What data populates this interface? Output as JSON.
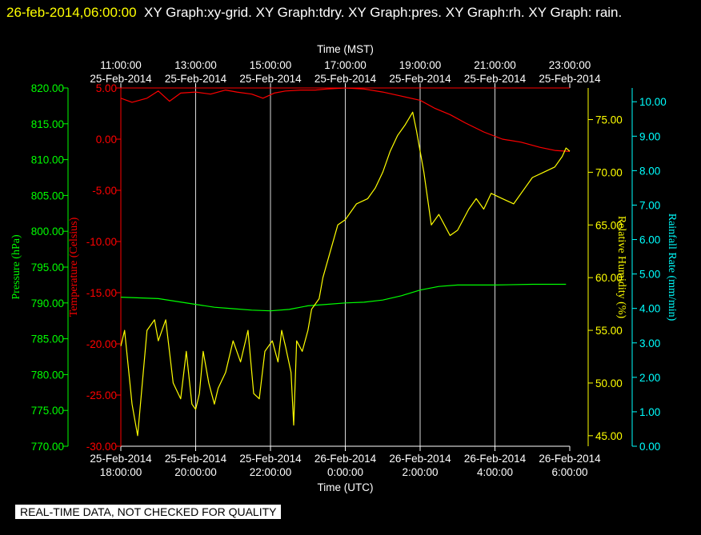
{
  "header": {
    "timestamp": "26-feb-2014,06:00:00",
    "graphs": "XY Graph:xy-grid.  XY Graph:tdry.  XY Graph:pres.  XY Graph:rh.  XY Graph: rain."
  },
  "footer": {
    "notice": "REAL-TIME DATA, NOT CHECKED FOR QUALITY"
  },
  "colors": {
    "background": "#000000",
    "grid": "#ffffff",
    "temperature": "#ff0000",
    "pressure": "#00ff00",
    "humidity": "#ffff00",
    "rainfall": "#00ffff"
  },
  "chart_data": {
    "type": "line",
    "top_axis": {
      "label": "Time (MST)",
      "ticks": [
        {
          "time": "11:00:00",
          "date": "25-Feb-2014"
        },
        {
          "time": "13:00:00",
          "date": "25-Feb-2014"
        },
        {
          "time": "15:00:00",
          "date": "25-Feb-2014"
        },
        {
          "time": "17:00:00",
          "date": "25-Feb-2014"
        },
        {
          "time": "19:00:00",
          "date": "25-Feb-2014"
        },
        {
          "time": "21:00:00",
          "date": "25-Feb-2014"
        },
        {
          "time": "23:00:00",
          "date": "25-Feb-2014"
        }
      ]
    },
    "bottom_axis": {
      "label": "Time (UTC)",
      "range_hours": [
        0,
        12
      ],
      "ticks": [
        {
          "date": "25-Feb-2014",
          "time": "18:00:00"
        },
        {
          "date": "25-Feb-2014",
          "time": "20:00:00"
        },
        {
          "date": "25-Feb-2014",
          "time": "22:00:00"
        },
        {
          "date": "26-Feb-2014",
          "time": "0:00:00"
        },
        {
          "date": "26-Feb-2014",
          "time": "2:00:00"
        },
        {
          "date": "26-Feb-2014",
          "time": "4:00:00"
        },
        {
          "date": "26-Feb-2014",
          "time": "6:00:00"
        }
      ]
    },
    "y_axes": {
      "pressure": {
        "label": "Pressure (hPa)",
        "range": [
          770,
          820
        ],
        "ticks": [
          "770.00",
          "775.00",
          "780.00",
          "785.00",
          "790.00",
          "795.00",
          "800.00",
          "805.00",
          "810.00",
          "815.00",
          "820.00"
        ]
      },
      "temperature": {
        "label": "Temperature (Celsius)",
        "range": [
          -30,
          5
        ],
        "ticks": [
          "-30.00",
          "-25.00",
          "-20.00",
          "-15.00",
          "-10.00",
          "-5.00",
          "0.00",
          "5.00"
        ]
      },
      "humidity": {
        "label": "Relative Humidity (%)",
        "range": [
          44,
          78
        ],
        "ticks": [
          "45.00",
          "50.00",
          "55.00",
          "60.00",
          "65.00",
          "70.00",
          "75.00"
        ]
      },
      "rainfall": {
        "label": "Rainfall Rate (mm/min)",
        "range": [
          0,
          10.4
        ],
        "ticks": [
          "0.00",
          "1.00",
          "2.00",
          "3.00",
          "4.00",
          "5.00",
          "6.00",
          "7.00",
          "8.00",
          "9.00",
          "10.00"
        ]
      }
    },
    "series": [
      {
        "name": "tdry",
        "axis": "temperature",
        "points": [
          [
            0,
            4.0
          ],
          [
            0.3,
            3.6
          ],
          [
            0.7,
            4.0
          ],
          [
            1.0,
            4.7
          ],
          [
            1.3,
            3.7
          ],
          [
            1.6,
            4.5
          ],
          [
            2.0,
            4.6
          ],
          [
            2.4,
            4.4
          ],
          [
            2.8,
            4.8
          ],
          [
            3.1,
            4.6
          ],
          [
            3.5,
            4.4
          ],
          [
            3.8,
            4.0
          ],
          [
            4.1,
            4.5
          ],
          [
            4.4,
            4.7
          ],
          [
            4.8,
            4.8
          ],
          [
            5.2,
            4.8
          ],
          [
            5.5,
            4.9
          ],
          [
            6.0,
            5.0
          ],
          [
            6.5,
            4.9
          ],
          [
            7.0,
            4.6
          ],
          [
            7.5,
            4.2
          ],
          [
            8.0,
            3.8
          ],
          [
            8.4,
            3.0
          ],
          [
            8.8,
            2.4
          ],
          [
            9.2,
            1.6
          ],
          [
            9.7,
            0.7
          ],
          [
            10.2,
            0.0
          ],
          [
            10.7,
            -0.3
          ],
          [
            11.2,
            -0.8
          ],
          [
            11.6,
            -1.1
          ],
          [
            12.0,
            -1.2
          ]
        ]
      },
      {
        "name": "pres",
        "axis": "pressure",
        "points": [
          [
            0,
            790.8
          ],
          [
            1.0,
            790.6
          ],
          [
            2.0,
            789.8
          ],
          [
            2.5,
            789.4
          ],
          [
            3.0,
            789.2
          ],
          [
            3.5,
            789.0
          ],
          [
            4.0,
            788.9
          ],
          [
            4.5,
            789.1
          ],
          [
            5.0,
            789.6
          ],
          [
            5.5,
            789.8
          ],
          [
            6.0,
            790.0
          ],
          [
            6.5,
            790.1
          ],
          [
            7.0,
            790.4
          ],
          [
            7.5,
            791.0
          ],
          [
            8.0,
            791.8
          ],
          [
            8.5,
            792.3
          ],
          [
            9.0,
            792.5
          ],
          [
            10.0,
            792.5
          ],
          [
            11.0,
            792.6
          ],
          [
            11.9,
            792.6
          ]
        ]
      },
      {
        "name": "rh",
        "axis": "humidity",
        "points": [
          [
            0,
            53.5
          ],
          [
            0.1,
            55.0
          ],
          [
            0.3,
            48.0
          ],
          [
            0.45,
            45.0
          ],
          [
            0.55,
            49.0
          ],
          [
            0.7,
            55.0
          ],
          [
            0.9,
            56.0
          ],
          [
            1.0,
            54.0
          ],
          [
            1.2,
            56.0
          ],
          [
            1.4,
            50.0
          ],
          [
            1.6,
            48.5
          ],
          [
            1.75,
            53.0
          ],
          [
            1.9,
            48.0
          ],
          [
            2.0,
            47.5
          ],
          [
            2.1,
            49.0
          ],
          [
            2.2,
            53.0
          ],
          [
            2.35,
            50.0
          ],
          [
            2.5,
            48.0
          ],
          [
            2.6,
            49.5
          ],
          [
            2.8,
            51.0
          ],
          [
            3.0,
            54.0
          ],
          [
            3.2,
            52.0
          ],
          [
            3.4,
            55.0
          ],
          [
            3.55,
            49.0
          ],
          [
            3.7,
            48.5
          ],
          [
            3.85,
            53.0
          ],
          [
            4.05,
            54.0
          ],
          [
            4.2,
            52.0
          ],
          [
            4.3,
            55.0
          ],
          [
            4.4,
            53.5
          ],
          [
            4.55,
            51.0
          ],
          [
            4.62,
            46.0
          ],
          [
            4.7,
            54.0
          ],
          [
            4.85,
            53.0
          ],
          [
            5.0,
            55.0
          ],
          [
            5.1,
            57.0
          ],
          [
            5.3,
            58.0
          ],
          [
            5.4,
            60.0
          ],
          [
            5.6,
            62.5
          ],
          [
            5.8,
            65.0
          ],
          [
            6.0,
            65.5
          ],
          [
            6.3,
            67.0
          ],
          [
            6.6,
            67.5
          ],
          [
            6.8,
            68.5
          ],
          [
            7.0,
            70.0
          ],
          [
            7.2,
            72.0
          ],
          [
            7.4,
            73.5
          ],
          [
            7.6,
            74.5
          ],
          [
            7.8,
            75.7
          ],
          [
            7.9,
            74.0
          ],
          [
            8.1,
            70.0
          ],
          [
            8.3,
            65.0
          ],
          [
            8.5,
            66.0
          ],
          [
            8.8,
            64.0
          ],
          [
            9.0,
            64.5
          ],
          [
            9.3,
            66.5
          ],
          [
            9.5,
            67.5
          ],
          [
            9.7,
            66.5
          ],
          [
            9.9,
            68.0
          ],
          [
            10.2,
            67.5
          ],
          [
            10.5,
            67.0
          ],
          [
            10.8,
            68.5
          ],
          [
            11.0,
            69.5
          ],
          [
            11.3,
            70.0
          ],
          [
            11.6,
            70.5
          ],
          [
            11.8,
            71.5
          ],
          [
            11.9,
            72.3
          ],
          [
            12.0,
            72.0
          ]
        ]
      },
      {
        "name": "rain",
        "axis": "rainfall",
        "points": []
      }
    ],
    "grid": true
  }
}
